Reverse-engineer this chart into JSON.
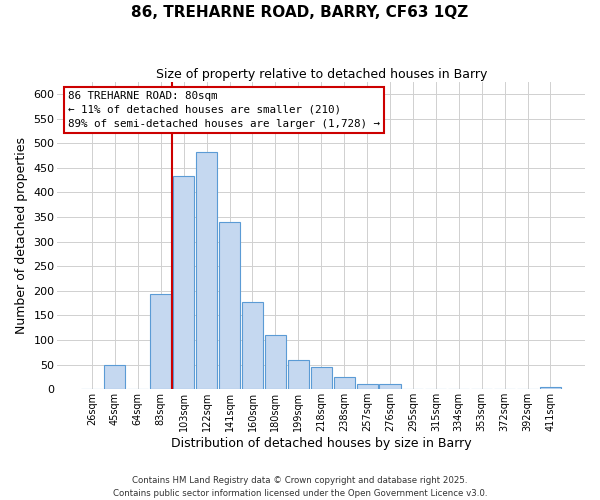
{
  "title": "86, TREHARNE ROAD, BARRY, CF63 1QZ",
  "subtitle": "Size of property relative to detached houses in Barry",
  "xlabel": "Distribution of detached houses by size in Barry",
  "ylabel": "Number of detached properties",
  "bar_labels": [
    "26sqm",
    "45sqm",
    "64sqm",
    "83sqm",
    "103sqm",
    "122sqm",
    "141sqm",
    "160sqm",
    "180sqm",
    "199sqm",
    "218sqm",
    "238sqm",
    "257sqm",
    "276sqm",
    "295sqm",
    "315sqm",
    "334sqm",
    "353sqm",
    "372sqm",
    "392sqm",
    "411sqm"
  ],
  "bar_values": [
    0,
    50,
    0,
    193,
    433,
    483,
    340,
    178,
    110,
    60,
    45,
    25,
    10,
    10,
    0,
    0,
    0,
    0,
    0,
    0,
    5
  ],
  "bar_color": "#c5d8f0",
  "bar_edge_color": "#5b9bd5",
  "ylim": [
    0,
    625
  ],
  "yticks": [
    0,
    50,
    100,
    150,
    200,
    250,
    300,
    350,
    400,
    450,
    500,
    550,
    600
  ],
  "vline_x_index": 3,
  "vline_color": "#cc0000",
  "annotation_title": "86 TREHARNE ROAD: 80sqm",
  "annotation_line1": "← 11% of detached houses are smaller (210)",
  "annotation_line2": "89% of semi-detached houses are larger (1,728) →",
  "annotation_box_edge": "#cc0000",
  "footer1": "Contains HM Land Registry data © Crown copyright and database right 2025.",
  "footer2": "Contains public sector information licensed under the Open Government Licence v3.0.",
  "background_color": "#ffffff",
  "grid_color": "#d0d0d0"
}
